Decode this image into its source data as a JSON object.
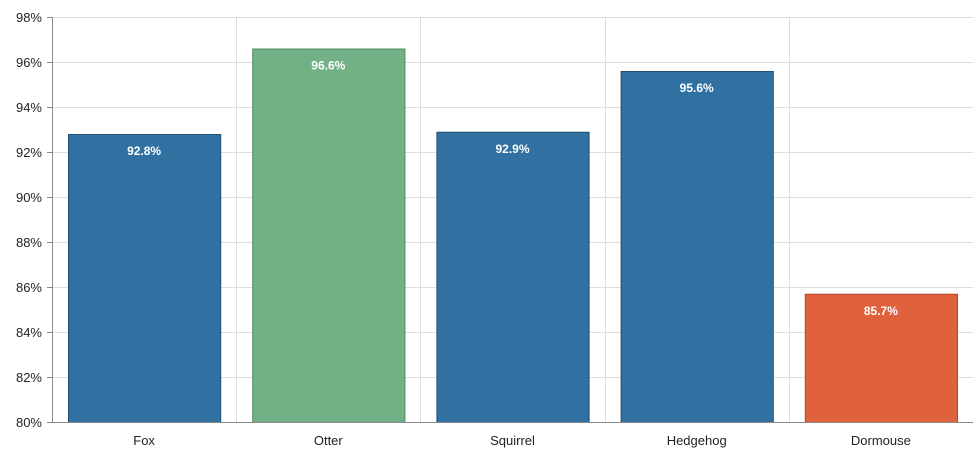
{
  "chart_data": {
    "type": "bar",
    "categories": [
      "Fox",
      "Otter",
      "Squirrel",
      "Hedgehog",
      "Dormouse"
    ],
    "values": [
      92.8,
      96.6,
      92.9,
      95.6,
      85.7
    ],
    "value_labels": [
      "92.8%",
      "96.6%",
      "92.9%",
      "95.6%",
      "85.7%"
    ],
    "bar_colors": [
      "#3071a2",
      "#72b186",
      "#3071a2",
      "#3071a2",
      "#e0623d"
    ],
    "bar_stroke_colors": [
      "#1f4f74",
      "#4e8a62",
      "#1f4f74",
      "#1f4f74",
      "#b44528"
    ],
    "ylim": [
      80,
      98
    ],
    "yticks": [
      80,
      82,
      84,
      86,
      88,
      90,
      92,
      94,
      96,
      98
    ],
    "ytick_labels": [
      "80%",
      "82%",
      "84%",
      "86%",
      "88%",
      "90%",
      "92%",
      "94%",
      "96%",
      "98%"
    ],
    "title": "",
    "xlabel": "",
    "ylabel": "",
    "grid": true,
    "legend": false
  }
}
